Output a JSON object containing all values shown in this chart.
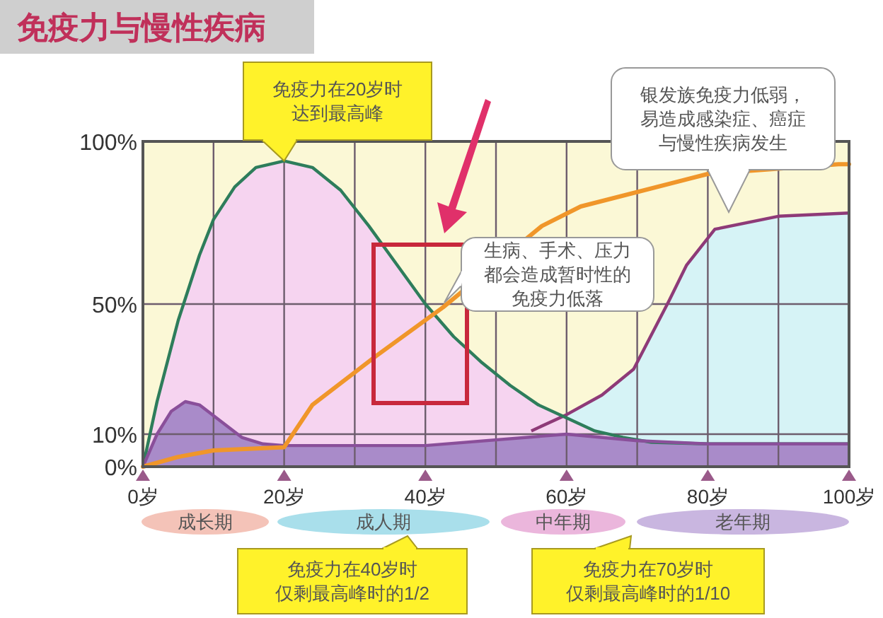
{
  "chart_data": {
    "type": "line",
    "title": "免疫力与慢性疾病",
    "xlim": [
      0,
      100
    ],
    "ylim": [
      0,
      100
    ],
    "xticks": [
      {
        "value": 0,
        "label": "0岁"
      },
      {
        "value": 10,
        "label": null
      },
      {
        "value": 20,
        "label": "20岁"
      },
      {
        "value": 30,
        "label": null
      },
      {
        "value": 40,
        "label": "40岁"
      },
      {
        "value": 50,
        "label": null
      },
      {
        "value": 60,
        "label": "60岁"
      },
      {
        "value": 70,
        "label": null
      },
      {
        "value": 80,
        "label": "80岁"
      },
      {
        "value": 90,
        "label": null
      },
      {
        "value": 100,
        "label": "100岁"
      }
    ],
    "yticks": [
      {
        "value": 0,
        "label": "0%"
      },
      {
        "value": 10,
        "label": "10%"
      },
      {
        "value": 50,
        "label": "50%"
      },
      {
        "value": 100,
        "label": "100%"
      }
    ],
    "grid": true,
    "series": [
      {
        "type": "area",
        "color": "#8e3a78",
        "x": [
          55,
          60,
          65,
          69.5,
          74.5,
          77,
          81,
          90,
          100
        ],
        "values": [
          11,
          16,
          22,
          30,
          51,
          62,
          73,
          77,
          78
        ]
      },
      {
        "type": "area",
        "color": "#2e7d5b",
        "x": [
          0,
          2,
          5,
          8,
          10,
          13,
          16,
          20,
          24,
          28,
          32,
          36,
          40,
          44,
          48,
          52,
          56,
          60,
          64,
          68,
          72,
          80,
          100
        ],
        "values": [
          0,
          20,
          45,
          65,
          76,
          86,
          92,
          94,
          92,
          85,
          74,
          62,
          50,
          40,
          32,
          25,
          19,
          15,
          11,
          9,
          7.5,
          7,
          7
        ]
      },
      {
        "type": "area",
        "color": "#8a4f9a",
        "x": [
          0,
          2,
          4,
          6,
          8,
          11,
          14,
          17,
          20,
          40,
          60,
          70,
          80,
          100
        ],
        "values": [
          0,
          10,
          17,
          20,
          19,
          14,
          9,
          7,
          6.5,
          6.5,
          10,
          8,
          7,
          7
        ]
      },
      {
        "color": "#f0962a",
        "x": [
          0,
          5,
          10,
          20,
          24,
          33,
          42.5,
          48,
          56.5,
          62,
          80,
          98.5,
          100
        ],
        "values": [
          0,
          3,
          5,
          6,
          19,
          34,
          49,
          null,
          74,
          80,
          90,
          93,
          93
        ]
      }
    ],
    "annotations": [
      {
        "text": "免疫力在20岁时达到最高峰",
        "x": 20,
        "y": 94
      },
      "银发族免疫力低弱，易造成感染症、癌症与慢性疾病发生",
      "生病、手术、压力都会造成暂时性的免疫力低落",
      "成长期",
      "成人期",
      "中年期",
      "老年期",
      "免疫力在40岁时仅剩最高峰时的1/2",
      "免疫力在70岁时仅剩最高峰时的1/10"
    ]
  }
}
